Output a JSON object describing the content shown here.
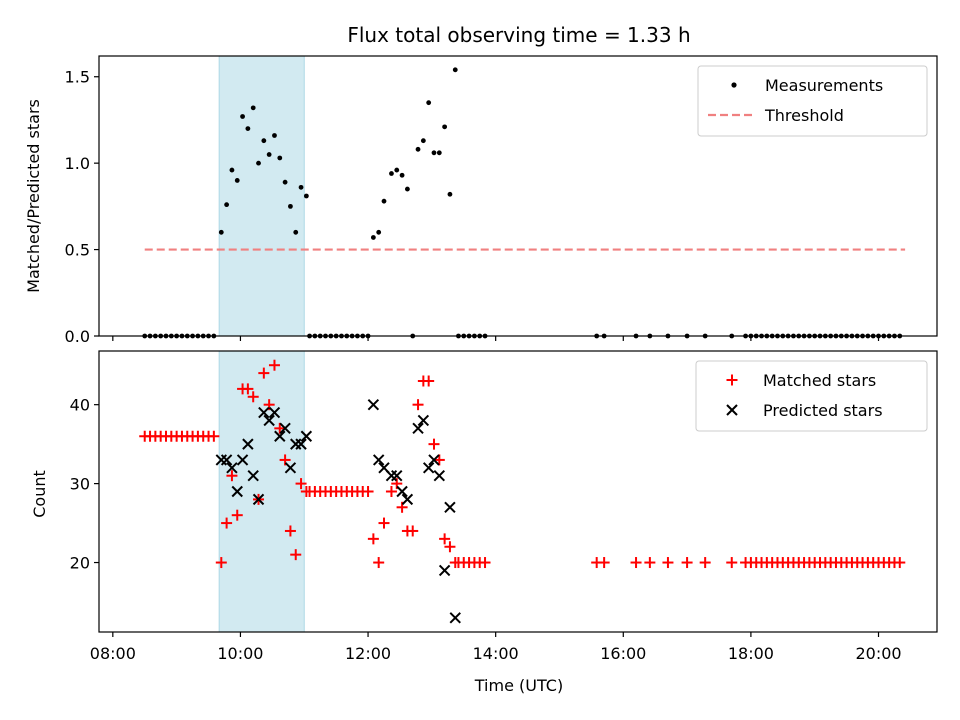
{
  "chart_data": [
    {
      "type": "scatter",
      "title": "Flux total observing time = 1.33 h",
      "ylabel": "Matched/Predicted stars",
      "xlabel": "",
      "xlim": [
        "07:47",
        "20:55"
      ],
      "ylim": [
        0,
        1.62
      ],
      "x_ticks": [
        "08:00",
        "10:00",
        "12:00",
        "14:00",
        "16:00",
        "18:00",
        "20:00"
      ],
      "y_ticks": [
        "0.0",
        "0.5",
        "1.0",
        "1.5"
      ],
      "shaded_span": {
        "x0": "09:40",
        "x1": "11:00",
        "color": "#add8e6"
      },
      "legend_position": "upper right",
      "threshold": {
        "name": "Threshold",
        "y": 0.5,
        "x0": "08:30",
        "x1": "20:25",
        "color": "#f08080",
        "style": "dashed"
      },
      "series": [
        {
          "name": "Measurements",
          "color": "#000000",
          "marker": "dot",
          "points": [
            [
              "08:30",
              0
            ],
            [
              "08:35",
              0
            ],
            [
              "08:40",
              0
            ],
            [
              "08:45",
              0
            ],
            [
              "08:50",
              0
            ],
            [
              "08:55",
              0
            ],
            [
              "09:00",
              0
            ],
            [
              "09:05",
              0
            ],
            [
              "09:10",
              0
            ],
            [
              "09:15",
              0
            ],
            [
              "09:20",
              0
            ],
            [
              "09:25",
              0
            ],
            [
              "09:30",
              0
            ],
            [
              "09:35",
              0
            ],
            [
              "09:42",
              0.6
            ],
            [
              "09:47",
              0.76
            ],
            [
              "09:52",
              0.96
            ],
            [
              "09:57",
              0.9
            ],
            [
              "10:02",
              1.27
            ],
            [
              "10:07",
              1.2
            ],
            [
              "10:12",
              1.32
            ],
            [
              "10:17",
              1.0
            ],
            [
              "10:22",
              1.13
            ],
            [
              "10:27",
              1.05
            ],
            [
              "10:32",
              1.16
            ],
            [
              "10:37",
              1.03
            ],
            [
              "10:42",
              0.89
            ],
            [
              "10:47",
              0.75
            ],
            [
              "10:52",
              0.6
            ],
            [
              "10:57",
              0.86
            ],
            [
              "11:02",
              0.81
            ],
            [
              "11:05",
              0
            ],
            [
              "11:10",
              0
            ],
            [
              "11:15",
              0
            ],
            [
              "11:20",
              0
            ],
            [
              "11:25",
              0
            ],
            [
              "11:30",
              0
            ],
            [
              "11:35",
              0
            ],
            [
              "11:40",
              0
            ],
            [
              "11:45",
              0
            ],
            [
              "11:50",
              0
            ],
            [
              "11:55",
              0
            ],
            [
              "12:00",
              0
            ],
            [
              "12:05",
              0.57
            ],
            [
              "12:10",
              0.6
            ],
            [
              "12:15",
              0.78
            ],
            [
              "12:22",
              0.94
            ],
            [
              "12:27",
              0.96
            ],
            [
              "12:32",
              0.93
            ],
            [
              "12:37",
              0.85
            ],
            [
              "12:42",
              0
            ],
            [
              "12:47",
              1.08
            ],
            [
              "12:52",
              1.13
            ],
            [
              "12:57",
              1.35
            ],
            [
              "13:02",
              1.06
            ],
            [
              "13:07",
              1.06
            ],
            [
              "13:12",
              1.21
            ],
            [
              "13:17",
              0.82
            ],
            [
              "13:22",
              1.54
            ],
            [
              "13:25",
              0
            ],
            [
              "13:30",
              0
            ],
            [
              "13:35",
              0
            ],
            [
              "13:40",
              0
            ],
            [
              "13:45",
              0
            ],
            [
              "13:50",
              0
            ],
            [
              "15:35",
              0
            ],
            [
              "15:42",
              0
            ],
            [
              "16:12",
              0
            ],
            [
              "16:25",
              0
            ],
            [
              "16:42",
              0
            ],
            [
              "17:00",
              0
            ],
            [
              "17:17",
              0
            ],
            [
              "17:42",
              0
            ],
            [
              "17:55",
              0
            ],
            [
              "18:00",
              0
            ],
            [
              "18:05",
              0
            ],
            [
              "18:10",
              0
            ],
            [
              "18:15",
              0
            ],
            [
              "18:20",
              0
            ],
            [
              "18:25",
              0
            ],
            [
              "18:30",
              0
            ],
            [
              "18:35",
              0
            ],
            [
              "18:40",
              0
            ],
            [
              "18:45",
              0
            ],
            [
              "18:50",
              0
            ],
            [
              "18:55",
              0
            ],
            [
              "19:00",
              0
            ],
            [
              "19:05",
              0
            ],
            [
              "19:10",
              0
            ],
            [
              "19:15",
              0
            ],
            [
              "19:20",
              0
            ],
            [
              "19:25",
              0
            ],
            [
              "19:30",
              0
            ],
            [
              "19:35",
              0
            ],
            [
              "19:40",
              0
            ],
            [
              "19:45",
              0
            ],
            [
              "19:50",
              0
            ],
            [
              "19:55",
              0
            ],
            [
              "20:00",
              0
            ],
            [
              "20:05",
              0
            ],
            [
              "20:10",
              0
            ],
            [
              "20:15",
              0
            ],
            [
              "20:20",
              0
            ]
          ]
        }
      ]
    },
    {
      "type": "scatter",
      "title": "",
      "ylabel": "Count",
      "xlabel": "Time (UTC)",
      "xlim": [
        "07:47",
        "20:55"
      ],
      "ylim": [
        11.2,
        46.8
      ],
      "x_ticks": [
        "08:00",
        "10:00",
        "12:00",
        "14:00",
        "16:00",
        "18:00",
        "20:00"
      ],
      "y_ticks": [
        "20",
        "30",
        "40"
      ],
      "shaded_span": {
        "x0": "09:40",
        "x1": "11:00",
        "color": "#add8e6"
      },
      "legend_position": "upper right",
      "series": [
        {
          "name": "Matched stars",
          "color": "#ff0000",
          "marker": "plus",
          "points": [
            [
              "08:30",
              36
            ],
            [
              "08:35",
              36
            ],
            [
              "08:40",
              36
            ],
            [
              "08:45",
              36
            ],
            [
              "08:50",
              36
            ],
            [
              "08:55",
              36
            ],
            [
              "09:00",
              36
            ],
            [
              "09:05",
              36
            ],
            [
              "09:10",
              36
            ],
            [
              "09:15",
              36
            ],
            [
              "09:20",
              36
            ],
            [
              "09:25",
              36
            ],
            [
              "09:30",
              36
            ],
            [
              "09:35",
              36
            ],
            [
              "09:42",
              20
            ],
            [
              "09:47",
              25
            ],
            [
              "09:52",
              31
            ],
            [
              "09:57",
              26
            ],
            [
              "10:02",
              42
            ],
            [
              "10:07",
              42
            ],
            [
              "10:12",
              41
            ],
            [
              "10:17",
              28
            ],
            [
              "10:22",
              44
            ],
            [
              "10:27",
              40
            ],
            [
              "10:32",
              45
            ],
            [
              "10:37",
              37
            ],
            [
              "10:42",
              33
            ],
            [
              "10:47",
              24
            ],
            [
              "10:52",
              21
            ],
            [
              "10:57",
              30
            ],
            [
              "11:02",
              29
            ],
            [
              "11:05",
              29
            ],
            [
              "11:10",
              29
            ],
            [
              "11:15",
              29
            ],
            [
              "11:20",
              29
            ],
            [
              "11:25",
              29
            ],
            [
              "11:30",
              29
            ],
            [
              "11:35",
              29
            ],
            [
              "11:40",
              29
            ],
            [
              "11:45",
              29
            ],
            [
              "11:50",
              29
            ],
            [
              "11:55",
              29
            ],
            [
              "12:00",
              29
            ],
            [
              "12:05",
              23
            ],
            [
              "12:10",
              20
            ],
            [
              "12:15",
              25
            ],
            [
              "12:22",
              29
            ],
            [
              "12:27",
              30
            ],
            [
              "12:32",
              27
            ],
            [
              "12:37",
              24
            ],
            [
              "12:42",
              24
            ],
            [
              "12:47",
              40
            ],
            [
              "12:52",
              43
            ],
            [
              "12:57",
              43
            ],
            [
              "13:02",
              35
            ],
            [
              "13:07",
              33
            ],
            [
              "13:12",
              23
            ],
            [
              "13:17",
              22
            ],
            [
              "13:22",
              20
            ],
            [
              "13:25",
              20
            ],
            [
              "13:30",
              20
            ],
            [
              "13:35",
              20
            ],
            [
              "13:40",
              20
            ],
            [
              "13:45",
              20
            ],
            [
              "13:50",
              20
            ],
            [
              "15:35",
              20
            ],
            [
              "15:42",
              20
            ],
            [
              "16:12",
              20
            ],
            [
              "16:25",
              20
            ],
            [
              "16:42",
              20
            ],
            [
              "17:00",
              20
            ],
            [
              "17:17",
              20
            ],
            [
              "17:42",
              20
            ],
            [
              "17:55",
              20
            ],
            [
              "18:00",
              20
            ],
            [
              "18:05",
              20
            ],
            [
              "18:10",
              20
            ],
            [
              "18:15",
              20
            ],
            [
              "18:20",
              20
            ],
            [
              "18:25",
              20
            ],
            [
              "18:30",
              20
            ],
            [
              "18:35",
              20
            ],
            [
              "18:40",
              20
            ],
            [
              "18:45",
              20
            ],
            [
              "18:50",
              20
            ],
            [
              "18:55",
              20
            ],
            [
              "19:00",
              20
            ],
            [
              "19:05",
              20
            ],
            [
              "19:10",
              20
            ],
            [
              "19:15",
              20
            ],
            [
              "19:20",
              20
            ],
            [
              "19:25",
              20
            ],
            [
              "19:30",
              20
            ],
            [
              "19:35",
              20
            ],
            [
              "19:40",
              20
            ],
            [
              "19:45",
              20
            ],
            [
              "19:50",
              20
            ],
            [
              "19:55",
              20
            ],
            [
              "20:00",
              20
            ],
            [
              "20:05",
              20
            ],
            [
              "20:10",
              20
            ],
            [
              "20:15",
              20
            ],
            [
              "20:20",
              20
            ]
          ]
        },
        {
          "name": "Predicted stars",
          "color": "#000000",
          "marker": "x",
          "points": [
            [
              "09:42",
              33
            ],
            [
              "09:47",
              33
            ],
            [
              "09:52",
              32
            ],
            [
              "09:57",
              29
            ],
            [
              "10:02",
              33
            ],
            [
              "10:07",
              35
            ],
            [
              "10:12",
              31
            ],
            [
              "10:17",
              28
            ],
            [
              "10:22",
              39
            ],
            [
              "10:27",
              38
            ],
            [
              "10:32",
              39
            ],
            [
              "10:37",
              36
            ],
            [
              "10:42",
              37
            ],
            [
              "10:47",
              32
            ],
            [
              "10:52",
              35
            ],
            [
              "10:57",
              35
            ],
            [
              "11:02",
              36
            ],
            [
              "12:05",
              40
            ],
            [
              "12:10",
              33
            ],
            [
              "12:15",
              32
            ],
            [
              "12:22",
              31
            ],
            [
              "12:27",
              31
            ],
            [
              "12:32",
              29
            ],
            [
              "12:37",
              28
            ],
            [
              "12:47",
              37
            ],
            [
              "12:52",
              38
            ],
            [
              "12:57",
              32
            ],
            [
              "13:02",
              33
            ],
            [
              "13:07",
              31
            ],
            [
              "13:12",
              19
            ],
            [
              "13:17",
              27
            ],
            [
              "13:22",
              13
            ]
          ]
        }
      ]
    }
  ]
}
